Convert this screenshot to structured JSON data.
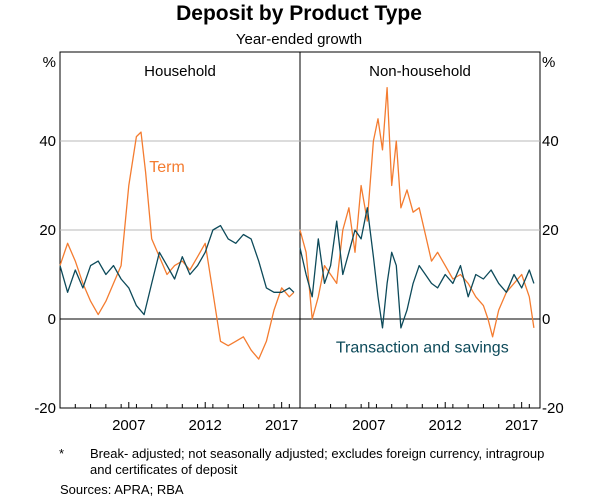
{
  "title": "Deposit by Product Type",
  "subtitle": "Year-ended growth",
  "footnote": {
    "marker": "*",
    "text": "Break- adjusted; not seasonally adjusted; excludes foreign currency, intragroup and certificates of deposit"
  },
  "sources": "Sources:   APRA; RBA",
  "colors": {
    "term": "#f47c30",
    "transaction": "#0d4a5a"
  },
  "chart_data": [
    {
      "type": "line",
      "panel_title": "Household",
      "ylabel": "%",
      "ylim": [
        -20,
        60
      ],
      "yticks": [
        "40",
        "20",
        "0",
        "-20"
      ],
      "ytick_values": [
        40,
        20,
        0,
        -20
      ],
      "xlim": [
        2003.0,
        2018.7
      ],
      "xticks": [
        "2007",
        "2012",
        "2017"
      ],
      "xtick_values": [
        2007.5,
        2012.5,
        2017.5
      ],
      "grid": true,
      "series": [
        {
          "name": "Term",
          "color": "#f47c30",
          "x": [
            2003.0,
            2003.5,
            2004.0,
            2004.5,
            2005.0,
            2005.5,
            2006.0,
            2006.5,
            2007.0,
            2007.5,
            2008.0,
            2008.3,
            2008.6,
            2009.0,
            2009.5,
            2010.0,
            2010.5,
            2011.0,
            2011.5,
            2012.0,
            2012.5,
            2013.0,
            2013.5,
            2014.0,
            2014.5,
            2015.0,
            2015.5,
            2016.0,
            2016.5,
            2017.0,
            2017.5,
            2018.0,
            2018.3
          ],
          "y": [
            12,
            17,
            13,
            8,
            4,
            1,
            4,
            8,
            12,
            30,
            41,
            42,
            33,
            18,
            14,
            10,
            12,
            13,
            11,
            14,
            17,
            6,
            -5,
            -6,
            -5,
            -4,
            -7,
            -9,
            -5,
            2,
            7,
            5,
            6
          ]
        },
        {
          "name": "Transaction and savings",
          "color": "#0d4a5a",
          "x": [
            2003.0,
            2003.5,
            2004.0,
            2004.5,
            2005.0,
            2005.5,
            2006.0,
            2006.5,
            2007.0,
            2007.5,
            2008.0,
            2008.5,
            2009.0,
            2009.5,
            2010.0,
            2010.5,
            2011.0,
            2011.5,
            2012.0,
            2012.5,
            2013.0,
            2013.5,
            2014.0,
            2014.5,
            2015.0,
            2015.5,
            2016.0,
            2016.5,
            2017.0,
            2017.5,
            2018.0,
            2018.3
          ],
          "y": [
            12,
            6,
            11,
            7,
            12,
            13,
            10,
            12,
            9,
            7,
            3,
            1,
            8,
            15,
            12,
            9,
            14,
            10,
            12,
            15,
            20,
            21,
            18,
            17,
            19,
            18,
            13,
            7,
            6,
            6,
            7,
            6
          ]
        }
      ],
      "annotations": [
        {
          "text": "Term",
          "x": 2010.0,
          "y": 33,
          "color": "#f47c30"
        }
      ]
    },
    {
      "type": "line",
      "panel_title": "Non-household",
      "ylabel": "%",
      "ylim": [
        -20,
        60
      ],
      "yticks": [
        "40",
        "20",
        "0",
        "-20"
      ],
      "ytick_values": [
        40,
        20,
        0,
        -20
      ],
      "xlim": [
        2003.0,
        2018.7
      ],
      "xticks": [
        "2007",
        "2012",
        "2017"
      ],
      "xtick_values": [
        2007.5,
        2012.5,
        2017.5
      ],
      "grid": true,
      "series": [
        {
          "name": "Term",
          "color": "#f47c30",
          "x": [
            2003.0,
            2003.4,
            2003.8,
            2004.2,
            2004.6,
            2005.0,
            2005.4,
            2005.8,
            2006.2,
            2006.6,
            2007.0,
            2007.4,
            2007.8,
            2008.1,
            2008.4,
            2008.7,
            2009.0,
            2009.3,
            2009.6,
            2010.0,
            2010.4,
            2010.8,
            2011.2,
            2011.6,
            2012.0,
            2012.5,
            2013.0,
            2013.5,
            2014.0,
            2014.5,
            2015.0,
            2015.3,
            2015.6,
            2016.0,
            2016.5,
            2017.0,
            2017.5,
            2018.0,
            2018.3
          ],
          "y": [
            20,
            15,
            0,
            5,
            12,
            10,
            8,
            20,
            25,
            15,
            30,
            22,
            40,
            45,
            38,
            52,
            30,
            40,
            25,
            29,
            24,
            25,
            19,
            13,
            15,
            12,
            9,
            10,
            8,
            5,
            3,
            0,
            -4,
            2,
            6,
            8,
            10,
            5,
            -2
          ]
        },
        {
          "name": "Transaction and savings",
          "color": "#0d4a5a",
          "x": [
            2003.0,
            2003.4,
            2003.8,
            2004.2,
            2004.6,
            2005.0,
            2005.4,
            2005.8,
            2006.2,
            2006.6,
            2007.0,
            2007.4,
            2007.8,
            2008.1,
            2008.4,
            2008.7,
            2009.0,
            2009.3,
            2009.6,
            2010.0,
            2010.4,
            2010.8,
            2011.2,
            2011.6,
            2012.0,
            2012.5,
            2013.0,
            2013.5,
            2014.0,
            2014.5,
            2015.0,
            2015.5,
            2016.0,
            2016.5,
            2017.0,
            2017.5,
            2018.0,
            2018.3
          ],
          "y": [
            16,
            10,
            5,
            18,
            8,
            12,
            22,
            10,
            15,
            20,
            18,
            25,
            14,
            5,
            -2,
            8,
            15,
            12,
            -2,
            2,
            8,
            12,
            10,
            8,
            7,
            10,
            8,
            12,
            5,
            10,
            9,
            11,
            8,
            6,
            10,
            7,
            11,
            8
          ]
        }
      ],
      "annotations": [
        {
          "text": "Transaction and savings",
          "x": 2011.0,
          "y": -7.5,
          "color": "#0d4a5a"
        }
      ]
    }
  ]
}
